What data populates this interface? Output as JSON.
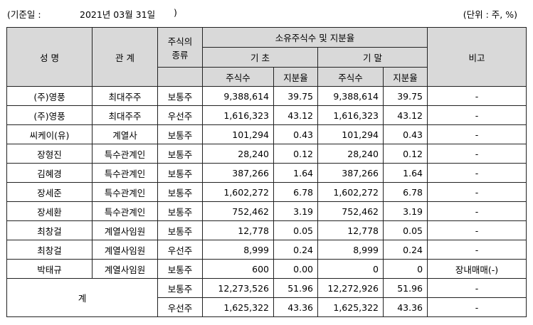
{
  "header": {
    "date_label": "(기준일 :",
    "date_value": "2021년 03월 31일",
    "date_close": ")",
    "unit": "(단위 : 주, %)"
  },
  "columns": {
    "name": "성 명",
    "relation": "관 계",
    "stock_type_line1": "주식의",
    "stock_type_line2": "종류",
    "ownership": "소유주식수 및 지분율",
    "period_start": "기 초",
    "period_end": "기 말",
    "shares": "주식수",
    "ratio": "지분율",
    "remarks": "비고"
  },
  "rows": [
    {
      "name": "(주)영풍",
      "relation": "최대주주",
      "type": "보통주",
      "start_shares": "9,388,614",
      "start_ratio": "39.75",
      "end_shares": "9,388,614",
      "end_ratio": "39.75",
      "remark": "-"
    },
    {
      "name": "(주)영풍",
      "relation": "최대주주",
      "type": "우선주",
      "start_shares": "1,616,323",
      "start_ratio": "43.12",
      "end_shares": "1,616,323",
      "end_ratio": "43.12",
      "remark": "-"
    },
    {
      "name": "씨케이(유)",
      "relation": "계열사",
      "type": "보통주",
      "start_shares": "101,294",
      "start_ratio": "0.43",
      "end_shares": "101,294",
      "end_ratio": "0.43",
      "remark": "-"
    },
    {
      "name": "장형진",
      "relation": "특수관계인",
      "type": "보통주",
      "start_shares": "28,240",
      "start_ratio": "0.12",
      "end_shares": "28,240",
      "end_ratio": "0.12",
      "remark": "-"
    },
    {
      "name": "김혜경",
      "relation": "특수관계인",
      "type": "보통주",
      "start_shares": "387,266",
      "start_ratio": "1.64",
      "end_shares": "387,266",
      "end_ratio": "1.64",
      "remark": "-"
    },
    {
      "name": "장세준",
      "relation": "특수관계인",
      "type": "보통주",
      "start_shares": "1,602,272",
      "start_ratio": "6.78",
      "end_shares": "1,602,272",
      "end_ratio": "6.78",
      "remark": "-"
    },
    {
      "name": "장세환",
      "relation": "특수관계인",
      "type": "보통주",
      "start_shares": "752,462",
      "start_ratio": "3.19",
      "end_shares": "752,462",
      "end_ratio": "3.19",
      "remark": "-"
    },
    {
      "name": "최창걸",
      "relation": "계열사임원",
      "type": "보통주",
      "start_shares": "12,778",
      "start_ratio": "0.05",
      "end_shares": "12,778",
      "end_ratio": "0.05",
      "remark": "-"
    },
    {
      "name": "최창걸",
      "relation": "계열사임원",
      "type": "우선주",
      "start_shares": "8,999",
      "start_ratio": "0.24",
      "end_shares": "8,999",
      "end_ratio": "0.24",
      "remark": "-"
    },
    {
      "name": "박태규",
      "relation": "계열사임원",
      "type": "보통주",
      "start_shares": "600",
      "start_ratio": "0.00",
      "end_shares": "0",
      "end_ratio": "0",
      "remark": "장내매매(-)"
    }
  ],
  "total": {
    "label": "계",
    "rows": [
      {
        "type": "보통주",
        "start_shares": "12,273,526",
        "start_ratio": "51.96",
        "end_shares": "12,272,926",
        "end_ratio": "51.96",
        "remark": "-"
      },
      {
        "type": "우선주",
        "start_shares": "1,625,322",
        "start_ratio": "43.36",
        "end_shares": "1,625,322",
        "end_ratio": "43.36",
        "remark": "-"
      }
    ]
  }
}
